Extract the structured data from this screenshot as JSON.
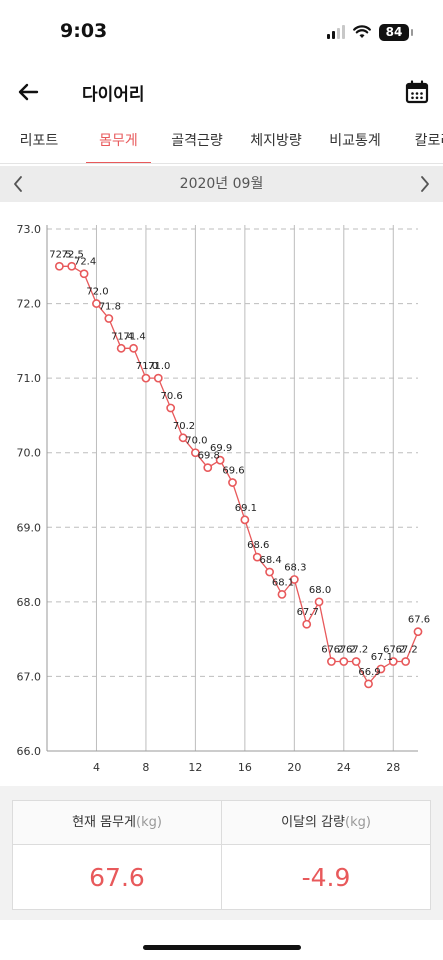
{
  "status_bar": {
    "time": "9:03",
    "battery": "84"
  },
  "header": {
    "title": "다이어리",
    "back_icon": "arrow-left-icon",
    "calendar_icon": "calendar-icon"
  },
  "tabs": [
    {
      "label": "리포트",
      "active": false
    },
    {
      "label": "몸무게",
      "active": true
    },
    {
      "label": "골격근량",
      "active": false
    },
    {
      "label": "체지방량",
      "active": false
    },
    {
      "label": "비교통계",
      "active": false
    },
    {
      "label": "칼로리",
      "active": false
    }
  ],
  "month_nav": {
    "label": "2020년 09월"
  },
  "colors": {
    "accent": "#e8595b",
    "grid": "#bdbdbd",
    "panel": "#ececec"
  },
  "chart_data": {
    "type": "line",
    "title": "",
    "xlabel": "",
    "ylabel": "",
    "xlim": [
      0,
      30
    ],
    "ylim": [
      66.0,
      73.0
    ],
    "x_ticks": [
      4,
      8,
      12,
      16,
      20,
      24,
      28
    ],
    "y_ticks": [
      66.0,
      67.0,
      68.0,
      69.0,
      70.0,
      71.0,
      72.0,
      73.0
    ],
    "grid": "vertical solid every 4 days, horizontal dashed every 1.0 kg",
    "series": [
      {
        "color": "#e8595b",
        "x": [
          1,
          2,
          3,
          4,
          5,
          6,
          7,
          8,
          9,
          10,
          11,
          12,
          13,
          14,
          15,
          16,
          17,
          18,
          19,
          20,
          21,
          22,
          23,
          24,
          25,
          26,
          27,
          28,
          29,
          30
        ],
        "y": [
          72.5,
          72.5,
          72.4,
          72.0,
          71.8,
          71.4,
          71.4,
          71.0,
          71.0,
          70.6,
          70.2,
          70.0,
          69.8,
          69.9,
          69.6,
          69.1,
          68.6,
          68.4,
          68.1,
          68.3,
          67.7,
          68.0,
          67.2,
          67.2,
          67.2,
          66.9,
          67.1,
          67.2,
          67.2,
          67.6
        ]
      }
    ]
  },
  "summary": {
    "current_label": "현재 몸무게",
    "current_unit": "(kg)",
    "current_value": "67.6",
    "change_label": "이달의 감량",
    "change_unit": "(kg)",
    "change_value": "-4.9"
  }
}
